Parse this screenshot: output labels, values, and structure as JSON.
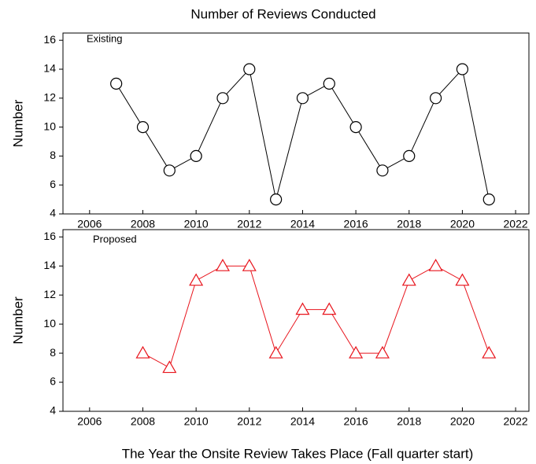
{
  "chart_data": [
    {
      "type": "line",
      "title": "Number of Reviews Conducted",
      "ylabel": "Number",
      "annotation": "Existing",
      "x": [
        2007,
        2008,
        2009,
        2010,
        2011,
        2012,
        2013,
        2014,
        2015,
        2016,
        2017,
        2018,
        2019,
        2020,
        2021
      ],
      "series": [
        {
          "name": "Existing",
          "color": "#000000",
          "marker": "circle",
          "values": [
            13,
            10,
            7,
            8,
            12,
            14,
            5,
            12,
            13,
            10,
            7,
            8,
            12,
            14,
            5
          ]
        }
      ],
      "xlim": [
        2005,
        2022.5
      ],
      "xticks": [
        2006,
        2008,
        2010,
        2012,
        2014,
        2016,
        2018,
        2020,
        2022
      ],
      "ylim": [
        4,
        16.5
      ],
      "yticks": [
        4,
        6,
        8,
        10,
        12,
        14,
        16
      ]
    },
    {
      "type": "line",
      "ylabel": "Number",
      "annotation": "Proposed",
      "xlabel": "The Year the Onsite Review Takes Place (Fall quarter start)",
      "x": [
        2008,
        2009,
        2010,
        2011,
        2012,
        2013,
        2014,
        2015,
        2016,
        2017,
        2018,
        2019,
        2020,
        2021
      ],
      "series": [
        {
          "name": "Proposed",
          "color": "#e8141c",
          "marker": "triangle",
          "values": [
            8,
            7,
            13,
            14,
            14,
            8,
            11,
            11,
            8,
            8,
            13,
            14,
            13,
            8
          ]
        }
      ],
      "xlim": [
        2005,
        2022.5
      ],
      "xticks": [
        2006,
        2008,
        2010,
        2012,
        2014,
        2016,
        2018,
        2020,
        2022
      ],
      "ylim": [
        4,
        16.5
      ],
      "yticks": [
        4,
        6,
        8,
        10,
        12,
        14,
        16
      ]
    }
  ]
}
